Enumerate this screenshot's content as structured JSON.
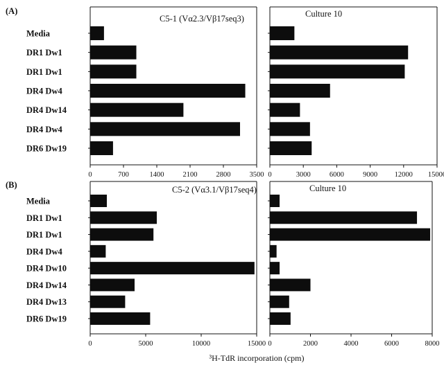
{
  "figure": {
    "x_axis_label": "³H-TdR incorporation (cpm)"
  },
  "chart_data": [
    {
      "type": "bar",
      "orientation": "horizontal",
      "panel": "(A)",
      "title": "C5-1 (Vα2.3/Vβ17seq3)",
      "categories": [
        "Media",
        "DR1 Dw1",
        "DR1 Dw1",
        "DR4 Dw4",
        "DR4 Dw14",
        "DR4 Dw4",
        "DR6 Dw19"
      ],
      "values": [
        290,
        970,
        970,
        3260,
        1960,
        3150,
        480
      ],
      "xlim": [
        0,
        3500
      ],
      "xticks": [
        "0",
        "700",
        "1400",
        "2100",
        "2800",
        "3500"
      ]
    },
    {
      "type": "bar",
      "orientation": "horizontal",
      "panel": "(A)",
      "title": "Culture 10",
      "categories": [
        "Media",
        "DR1 Dw1",
        "DR1 Dw1",
        "DR4 Dw4",
        "DR4 Dw14",
        "DR4 Dw4",
        "DR6 Dw19"
      ],
      "values": [
        2200,
        12400,
        12100,
        5400,
        2700,
        3600,
        3750
      ],
      "xlim": [
        0,
        15000
      ],
      "xticks": [
        "0",
        "3000",
        "6000",
        "9000",
        "12000",
        "15000"
      ]
    },
    {
      "type": "bar",
      "orientation": "horizontal",
      "panel": "(B)",
      "title": "C5-2 (Vα3.1/Vβ17seq4)",
      "categories": [
        "Media",
        "DR1 Dw1",
        "DR1 Dw1",
        "DR4 Dw4",
        "DR4 Dw10",
        "DR4 Dw14",
        "DR4 Dw13",
        "DR6 Dw19"
      ],
      "values": [
        1500,
        6000,
        5700,
        1400,
        14800,
        4000,
        3150,
        5400
      ],
      "xlim": [
        0,
        15000
      ],
      "xticks": [
        "0",
        "5000",
        "10000",
        "15000"
      ]
    },
    {
      "type": "bar",
      "orientation": "horizontal",
      "panel": "(B)",
      "title": "Culture 10",
      "categories": [
        "Media",
        "DR1 Dw1",
        "DR1 Dw1",
        "DR4 Dw4",
        "DR4 Dw10",
        "DR4 Dw14",
        "DR4 Dw13",
        "DR6 Dw19"
      ],
      "values": [
        480,
        7250,
        7900,
        330,
        480,
        2000,
        950,
        1020
      ],
      "xlim": [
        0,
        8000
      ],
      "xticks": [
        "0",
        "2000",
        "4000",
        "6000",
        "8000"
      ]
    }
  ]
}
